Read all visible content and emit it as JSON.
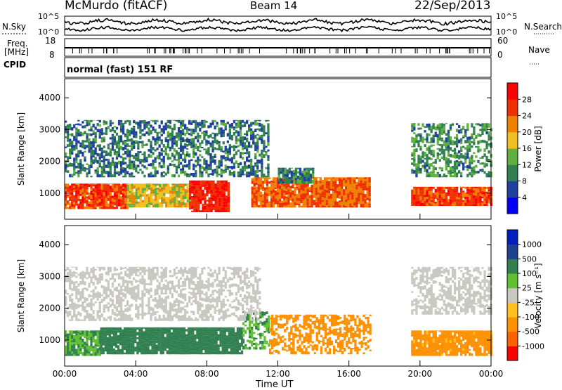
{
  "header": {
    "station": "McMurdo (fitACF)",
    "beam": "Beam 14",
    "date": "22/Sep/2013"
  },
  "noise_panel": {
    "left_label": "N.Sky",
    "right_label": "N.Search",
    "left_ticks": [
      "10^5",
      "10^0"
    ],
    "right_ticks": [
      "10^5",
      "10^0"
    ]
  },
  "freq_panel": {
    "left_label_line1": "Freq.",
    "left_label_line2": "[MHz]",
    "left_ticks": [
      "18",
      "8"
    ],
    "right_label": "Nave",
    "right_ticks": [
      "60",
      "0"
    ],
    "cpid_label": "CPID"
  },
  "cpid_value": "normal (fast) 151 RF",
  "x_axis": {
    "label": "Time UT",
    "ticks": [
      "00:00",
      "04:00",
      "08:00",
      "12:00",
      "16:00",
      "20:00",
      "00:00"
    ]
  },
  "colors": {
    "power": [
      "#0000ff",
      "#2040a0",
      "#308050",
      "#60b040",
      "#f0c020",
      "#f08000",
      "#f03000",
      "#ff0000"
    ],
    "velocity": [
      "#ff0000",
      "#ff6000",
      "#ff9000",
      "#ffc020",
      "#c8c8c0",
      "#60c030",
      "#308050",
      "#204090",
      "#0020c0"
    ]
  },
  "chart_data": [
    {
      "type": "heatmap",
      "panel": "power",
      "xlabel": "",
      "ylabel": "Slant Range [km]",
      "ylim": [
        180,
        4600
      ],
      "y_ticks": [
        1000,
        2000,
        3000,
        4000
      ],
      "colorbar": {
        "label": "Power [dB]",
        "ticks": [
          4,
          8,
          12,
          16,
          20,
          24,
          28
        ],
        "range": [
          0,
          32
        ]
      },
      "regions": [
        {
          "t0": 0.0,
          "t1": 3.5,
          "r0": 500,
          "r1": 1300,
          "value": 26
        },
        {
          "t0": 3.5,
          "t1": 7.0,
          "r0": 550,
          "r1": 1300,
          "value": 18
        },
        {
          "t0": 7.0,
          "t1": 9.2,
          "r0": 400,
          "r1": 1400,
          "value": 28
        },
        {
          "t0": 10.5,
          "t1": 17.2,
          "r0": 550,
          "r1": 1500,
          "value": 24
        },
        {
          "t0": 19.5,
          "t1": 24.0,
          "r0": 600,
          "r1": 1200,
          "value": 26
        },
        {
          "t0": 0.0,
          "t1": 11.5,
          "r0": 1500,
          "r1": 3300,
          "value": 9
        },
        {
          "t0": 12.0,
          "t1": 14.0,
          "r0": 1300,
          "r1": 1800,
          "value": 10
        },
        {
          "t0": 19.5,
          "t1": 24.0,
          "r0": 1500,
          "r1": 3200,
          "value": 11
        }
      ]
    },
    {
      "type": "heatmap",
      "panel": "velocity",
      "xlabel": "Time UT",
      "ylabel": "Slant Range [km]",
      "ylim": [
        180,
        4600
      ],
      "y_ticks": [
        1000,
        2000,
        3000,
        4000
      ],
      "x_ticks": [
        "00:00",
        "04:00",
        "08:00",
        "12:00",
        "16:00",
        "20:00",
        "00:00"
      ],
      "colorbar": {
        "label": "Velocity [m s⁻¹]",
        "ticks": [
          1000,
          500,
          100,
          25,
          -25,
          -100,
          -500,
          -1000
        ]
      },
      "regions": [
        {
          "t0": 0.0,
          "t1": 2.0,
          "r0": 500,
          "r1": 1300,
          "value": 100
        },
        {
          "t0": 2.0,
          "t1": 10.0,
          "r0": 550,
          "r1": 1400,
          "value": 300
        },
        {
          "t0": 10.0,
          "t1": 11.5,
          "r0": 700,
          "r1": 1900,
          "value": 100
        },
        {
          "t0": 11.5,
          "t1": 17.2,
          "r0": 550,
          "r1": 1800,
          "value": -300
        },
        {
          "t0": 19.5,
          "t1": 24.0,
          "r0": 500,
          "r1": 1300,
          "value": -150
        },
        {
          "t0": 0.0,
          "t1": 11.0,
          "r0": 1600,
          "r1": 3300,
          "value": 0
        },
        {
          "t0": 19.5,
          "t1": 24.0,
          "r0": 1800,
          "r1": 3300,
          "value": 0
        }
      ]
    }
  ]
}
